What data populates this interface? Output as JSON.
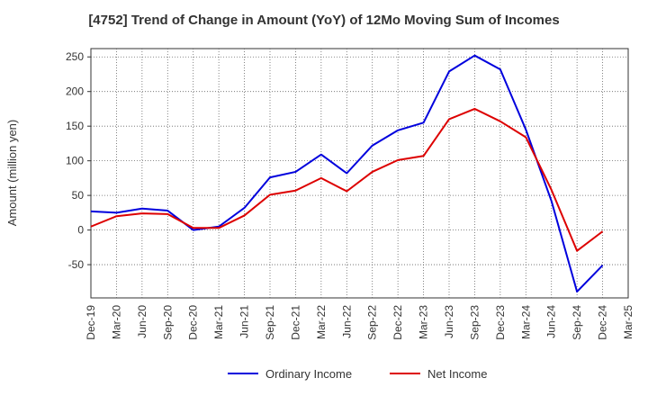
{
  "chart_data": {
    "type": "line",
    "title": "[4752]  Trend of Change in Amount (YoY) of 12Mo Moving Sum of Incomes",
    "xlabel": "",
    "ylabel": "Amount (million yen)",
    "ylim": [
      -98,
      262
    ],
    "yticks": [
      -50,
      0,
      50,
      100,
      150,
      200,
      250
    ],
    "grid": true,
    "legend_position": "bottom",
    "categories": [
      "Dec-19",
      "Mar-20",
      "Jun-20",
      "Sep-20",
      "Dec-20",
      "Mar-21",
      "Jun-21",
      "Sep-21",
      "Dec-21",
      "Mar-22",
      "Jun-22",
      "Sep-22",
      "Dec-22",
      "Mar-23",
      "Jun-23",
      "Sep-23",
      "Dec-23",
      "Mar-24",
      "Jun-24",
      "Sep-24",
      "Dec-24",
      "Mar-25"
    ],
    "series": [
      {
        "name": "Ordinary Income",
        "color": "#0000dd",
        "values": [
          27,
          25,
          31,
          28,
          0,
          5,
          32,
          76,
          84,
          109,
          82,
          122,
          144,
          155,
          229,
          252,
          232,
          145,
          42,
          -89,
          -51,
          null
        ]
      },
      {
        "name": "Net Income",
        "color": "#dd0000",
        "values": [
          5,
          20,
          24,
          23,
          3,
          3,
          21,
          51,
          57,
          75,
          56,
          84,
          101,
          107,
          160,
          175,
          157,
          134,
          58,
          -30,
          -2,
          null
        ]
      }
    ]
  }
}
